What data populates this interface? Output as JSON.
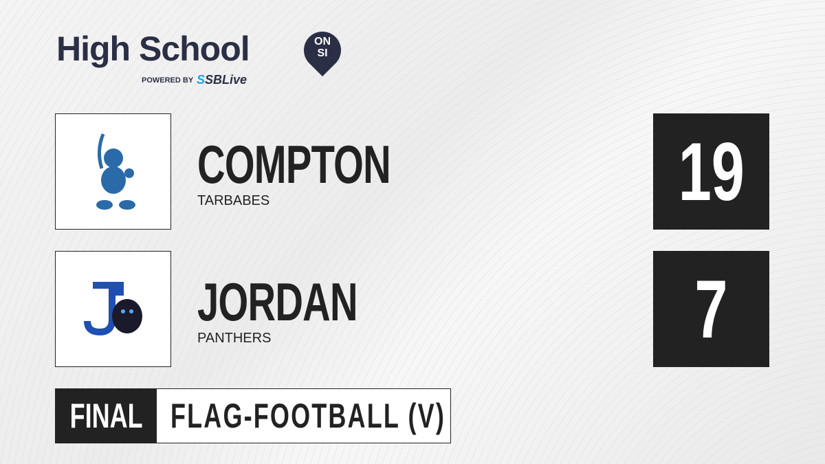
{
  "brand": {
    "title": "High School",
    "badge_line1": "ON",
    "badge_line2": "SI",
    "powered_by": "POWERED BY",
    "partner": "SBLive",
    "accent": "#2b2f45",
    "partner_color": "#1da1e8"
  },
  "teams": [
    {
      "name": "COMPTON",
      "mascot": "TARBABES",
      "score": "19",
      "logo_icon": "pirate-mascot-icon",
      "logo_color": "#2a6aa8"
    },
    {
      "name": "JORDAN",
      "mascot": "PANTHERS",
      "score": "7",
      "logo_icon": "panther-j-icon",
      "logo_color": "#1f4fb0"
    }
  ],
  "status": {
    "label": "FINAL",
    "sport": "FLAG-FOOTBALL (V)"
  }
}
